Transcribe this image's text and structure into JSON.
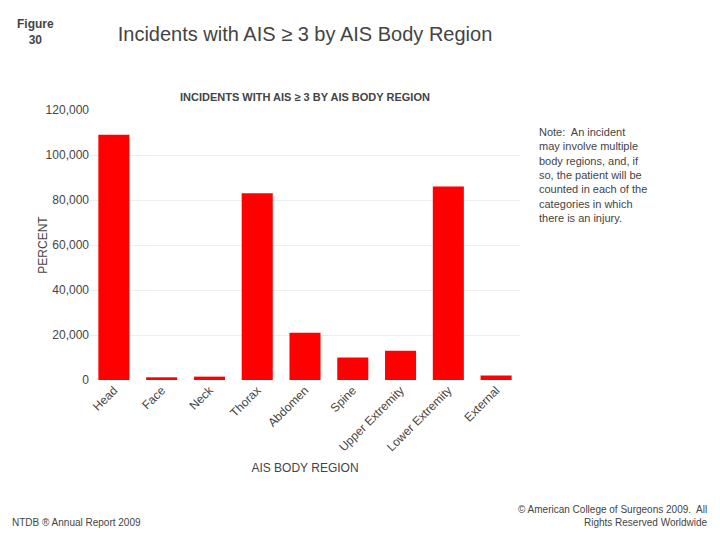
{
  "chart_data": {
    "type": "bar",
    "title": "Incidents with AIS ≥ 3 by AIS Body Region",
    "subtitle": "INCIDENTS WITH AIS ≥ 3 BY AIS BODY REGION",
    "categories": [
      "Head",
      "Face",
      "Neck",
      "Thorax",
      "Abdomen",
      "Spine",
      "Upper Extremity",
      "Lower Extremity",
      "External"
    ],
    "values": [
      109000,
      1200,
      1500,
      83000,
      21000,
      10000,
      13000,
      86000,
      2000
    ],
    "color": "#ff0000",
    "xlabel": "AIS BODY REGION",
    "ylabel": "PERCENT",
    "ylim": [
      0,
      120000
    ],
    "yticks": [
      0,
      {
        "value": 20000,
        "label": "20,000"
      },
      {
        "value": 40000,
        "label": "40,000"
      },
      {
        "value": 60000,
        "label": "60,000"
      },
      {
        "value": 80000,
        "label": "80,000"
      },
      {
        "value": 100000,
        "label": "100,000"
      },
      {
        "value": 120000,
        "label": "120,000"
      }
    ],
    "grid": true,
    "annotations": [
      "Figure\n30",
      "Note:  An incident\nmay involve multiple\nbody regions, and, if\nso, the patient will be\ncounted in each of the\ncategories in which\nthere is an injury.",
      "NTDB ® Annual Report 2009",
      "© American College of Surgeons 2009.  All\nRights Reserved Worldwide"
    ]
  }
}
